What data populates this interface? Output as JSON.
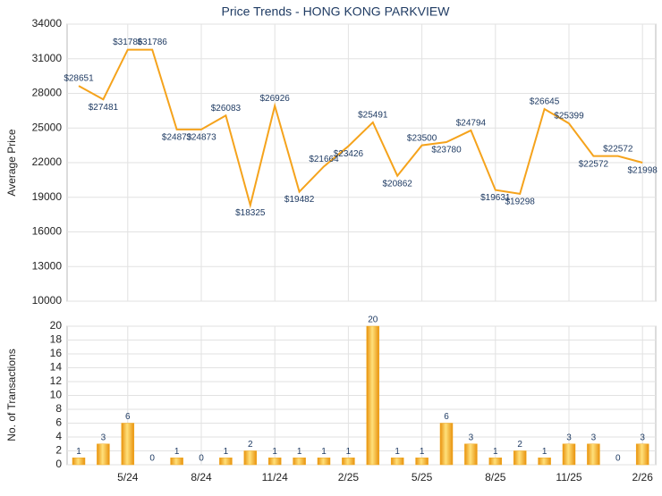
{
  "chart_data": [
    {
      "type": "line",
      "title": "Price Trends - HONG KONG PARKVIEW",
      "y_label": "Average Price",
      "color": "#f5a31c",
      "values": [
        28651,
        27481,
        31786,
        31786,
        24873,
        24873,
        26083,
        18325,
        26926,
        19482,
        21664,
        23426,
        25491,
        20862,
        23500,
        23780,
        24794,
        19631,
        19298,
        26645,
        25399,
        22572,
        22572,
        21998
      ],
      "value_labels": [
        "$28651",
        "$27481",
        "$31786",
        "$31786",
        "$24873",
        "$24873",
        "$26083",
        "$18325",
        "$26926",
        "$19482",
        "$21664",
        "$23426",
        "$25491",
        "$20862",
        "$23500",
        "$23780",
        "$24794",
        "$19631",
        "$19298",
        "$26645",
        "$25399",
        "$22572",
        "$22572",
        "$21998"
      ],
      "ylim": [
        10000,
        34000
      ],
      "yticks": [
        10000,
        13000,
        16000,
        19000,
        22000,
        25000,
        28000,
        31000,
        34000
      ],
      "grid": true
    },
    {
      "type": "bar",
      "y_label": "No. of Transactions",
      "color": "#f2a81d",
      "categories": [
        null,
        null,
        "5/24",
        null,
        null,
        "8/24",
        null,
        null,
        "11/24",
        null,
        null,
        "2/25",
        null,
        null,
        "5/25",
        null,
        null,
        "8/25",
        null,
        null,
        "11/25",
        null,
        null,
        "2/26"
      ],
      "values": [
        1,
        3,
        6,
        0,
        1,
        0,
        1,
        2,
        1,
        1,
        1,
        1,
        20,
        1,
        1,
        6,
        3,
        1,
        2,
        1,
        3,
        3,
        0,
        3
      ],
      "ylim": [
        0,
        20
      ],
      "yticks": [
        0,
        2,
        4,
        6,
        8,
        10,
        12,
        14,
        16,
        18,
        20
      ],
      "grid": true
    }
  ]
}
